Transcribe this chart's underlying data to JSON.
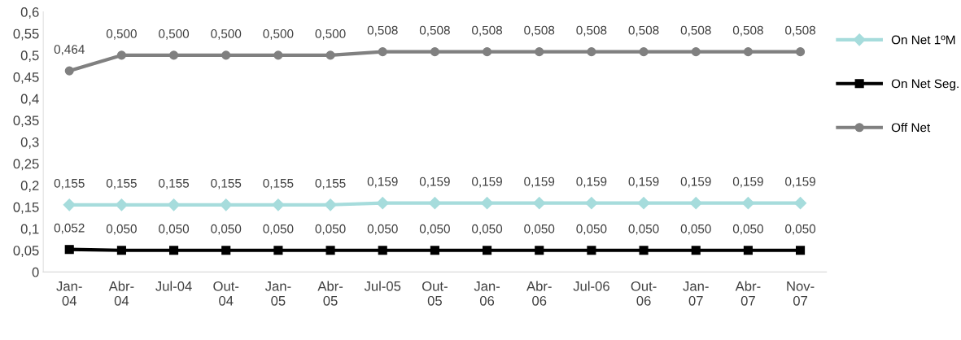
{
  "chart_data": {
    "type": "line",
    "categories": [
      "Jan-\n04",
      "Abr-\n04",
      "Jul-04",
      "Out-\n04",
      "Jan-\n05",
      "Abr-\n05",
      "Jul-05",
      "Out-\n05",
      "Jan-\n06",
      "Abr-\n06",
      "Jul-06",
      "Out-\n06",
      "Jan-\n07",
      "Abr-\n07",
      "Nov-\n07"
    ],
    "series": [
      {
        "name": "On Net 1ºM",
        "color": "#a6dcdc",
        "marker": "diamond",
        "values": [
          0.155,
          0.155,
          0.155,
          0.155,
          0.155,
          0.155,
          0.159,
          0.159,
          0.159,
          0.159,
          0.159,
          0.159,
          0.159,
          0.159,
          0.159
        ],
        "value_labels": [
          "0,155",
          "0,155",
          "0,155",
          "0,155",
          "0,155",
          "0,155",
          "0,159",
          "0,159",
          "0,159",
          "0,159",
          "0,159",
          "0,159",
          "0,159",
          "0,159",
          "0,159"
        ]
      },
      {
        "name": "On Net Seg.",
        "color": "#000000",
        "marker": "square",
        "values": [
          0.052,
          0.05,
          0.05,
          0.05,
          0.05,
          0.05,
          0.05,
          0.05,
          0.05,
          0.05,
          0.05,
          0.05,
          0.05,
          0.05,
          0.05
        ],
        "value_labels": [
          "0,052",
          "0,050",
          "0,050",
          "0,050",
          "0,050",
          "0,050",
          "0,050",
          "0,050",
          "0,050",
          "0,050",
          "0,050",
          "0,050",
          "0,050",
          "0,050",
          "0,050"
        ]
      },
      {
        "name": "Off Net",
        "color": "#808080",
        "marker": "circle",
        "values": [
          0.464,
          0.5,
          0.5,
          0.5,
          0.5,
          0.5,
          0.508,
          0.508,
          0.508,
          0.508,
          0.508,
          0.508,
          0.508,
          0.508,
          0.508
        ],
        "value_labels": [
          "0,464",
          "0,500",
          "0,500",
          "0,500",
          "0,500",
          "0,500",
          "0,508",
          "0,508",
          "0,508",
          "0,508",
          "0,508",
          "0,508",
          "0,508",
          "0,508",
          "0,508"
        ]
      }
    ],
    "ylim": [
      0,
      0.6
    ],
    "yticks": [
      0,
      {
        "value": 0.05,
        "label": "0,05"
      },
      {
        "value": 0.1,
        "label": "0,1"
      },
      {
        "value": 0.15,
        "label": "0,15"
      },
      {
        "value": 0.2,
        "label": "0,2"
      },
      {
        "value": 0.25,
        "label": "0,25"
      },
      {
        "value": 0.3,
        "label": "0,3"
      },
      {
        "value": 0.35,
        "label": "0,35"
      },
      {
        "value": 0.4,
        "label": "0,4"
      },
      {
        "value": 0.45,
        "label": "0,45"
      },
      {
        "value": 0.5,
        "label": "0,5"
      },
      {
        "value": 0.55,
        "label": "0,55"
      },
      {
        "value": 0.6,
        "label": "0,6"
      }
    ],
    "grid": false,
    "legend": "right",
    "line_style": "solid"
  }
}
